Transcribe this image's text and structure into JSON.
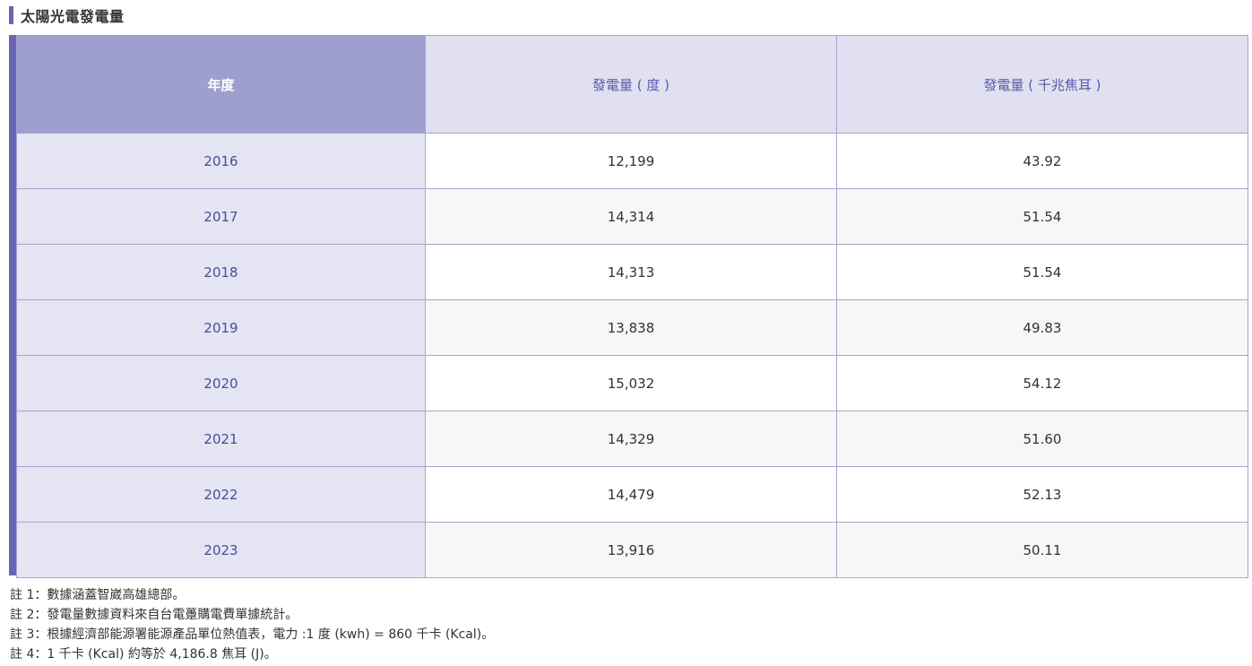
{
  "title": "太陽光電發電量",
  "table": {
    "headers": [
      "年度",
      "發電量 ( 度 )",
      "發電量 ( 千兆焦耳 )"
    ],
    "rows": [
      {
        "year": "2016",
        "kwh": "12,199",
        "pj": "43.92"
      },
      {
        "year": "2017",
        "kwh": "14,314",
        "pj": "51.54"
      },
      {
        "year": "2018",
        "kwh": "14,313",
        "pj": "51.54"
      },
      {
        "year": "2019",
        "kwh": "13,838",
        "pj": "49.83"
      },
      {
        "year": "2020",
        "kwh": "15,032",
        "pj": "54.12"
      },
      {
        "year": "2021",
        "kwh": "14,329",
        "pj": "51.60"
      },
      {
        "year": "2022",
        "kwh": "14,479",
        "pj": "52.13"
      },
      {
        "year": "2023",
        "kwh": "13,916",
        "pj": "50.11"
      }
    ]
  },
  "notes": [
    "註 1：數據涵蓋智崴高雄總部。",
    "註 2：發電量數據資料來自台電躉購電費單據統計。",
    "註 3：根據經濟部能源署能源產品單位熱值表，電力 :1 度 (kwh) = 860 千卡 (Kcal)。",
    "註 4：1 千卡 (Kcal) 約等於 4,186.8 焦耳 (J)。"
  ],
  "colors": {
    "accent": "#6b66b3",
    "header_year_bg": "#9f9fcf",
    "header_bg": "#e1e0f1",
    "year_cell_bg": "#e5e4f3",
    "border": "#a8a5cf"
  }
}
